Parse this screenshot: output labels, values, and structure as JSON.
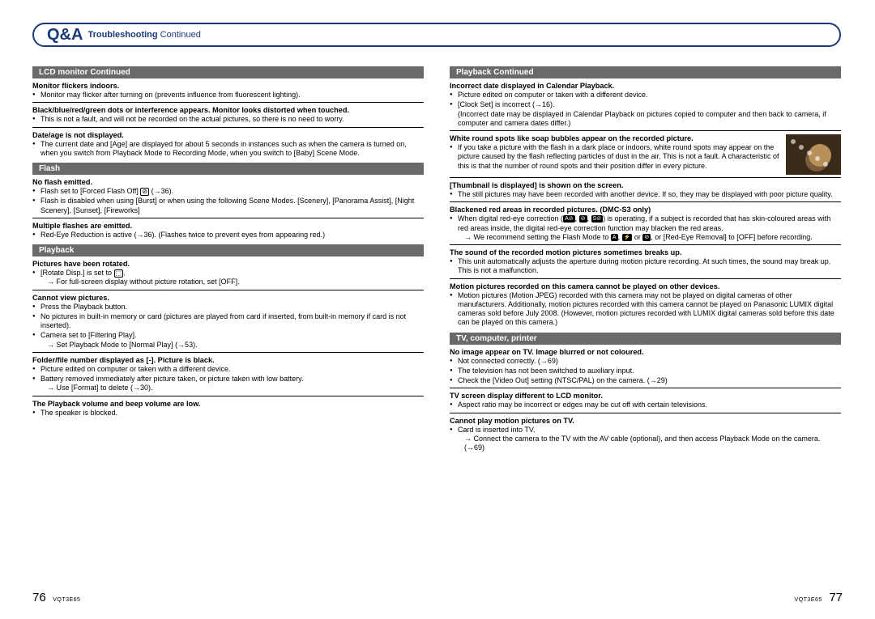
{
  "header": {
    "qa": "Q&A",
    "title_bold": "Troubleshooting",
    "title_rest": " Continued"
  },
  "left": {
    "sections": [
      {
        "bar": "LCD monitor Continued",
        "groups": [
          {
            "title": "Monitor flickers indoors.",
            "bullets": [
              {
                "text": "Monitor may flicker after turning on (prevents influence from fluorescent lighting)."
              }
            ]
          },
          {
            "title": "Black/blue/red/green dots or interference appears. Monitor looks distorted when touched.",
            "bullets": [
              {
                "text": "This is not a fault, and will not be recorded on the actual pictures, so there is no need to worry."
              }
            ]
          },
          {
            "title": "Date/age is not displayed.",
            "bullets": [
              {
                "text": "The current date and [Age] are displayed for about 5 seconds in instances such as when the camera is turned on, when you switch from Playback Mode to Recording Mode, when you switch to [Baby] Scene Mode."
              }
            ]
          }
        ]
      },
      {
        "bar": "Flash",
        "groups": [
          {
            "title": "No flash emitted.",
            "bullets": [
              {
                "text_html": "Flash set to [Forced Flash Off] <span class='icon-box'>⊘</span> (→36)."
              },
              {
                "text": "Flash is disabled when using [Burst] or when using the following Scene Modes. [Scenery], [Panorama Assist], [Night Scenery], [Sunset], [Fireworks]"
              }
            ]
          },
          {
            "title": "Multiple flashes are emitted.",
            "bullets": [
              {
                "text": "Red-Eye Reduction is active (→36). (Flashes twice to prevent eyes from appearing red.)"
              }
            ]
          }
        ]
      },
      {
        "bar": "Playback",
        "groups": [
          {
            "title": "Pictures have been rotated.",
            "bullets": [
              {
                "text_html": "[Rotate Disp.] is set to <span class='icon-box'>⬚</span>.",
                "sub": "→ For full-screen display without picture rotation, set [OFF]."
              }
            ]
          },
          {
            "title": "Cannot view pictures.",
            "bullets": [
              {
                "text": "Press the Playback button."
              },
              {
                "text": "No pictures in built-in memory or card (pictures are played from card if inserted, from built-in memory if card is not inserted)."
              },
              {
                "text": "Camera set to [Filtering Play].",
                "sub": "→ Set Playback Mode to [Normal Play] (→53)."
              }
            ]
          },
          {
            "title": "Folder/file number displayed as [-]. Picture is black.",
            "bullets": [
              {
                "text": "Picture edited on computer or taken with a different device."
              },
              {
                "text": "Battery removed immediately after picture taken, or picture taken with low battery.",
                "sub": "→ Use [Format] to delete (→30)."
              }
            ]
          },
          {
            "title": "The Playback volume and beep volume are low.",
            "bullets": [
              {
                "text": "The speaker is blocked."
              }
            ]
          }
        ]
      }
    ]
  },
  "right": {
    "sections": [
      {
        "bar": "Playback Continued",
        "groups": [
          {
            "title": "Incorrect date displayed in Calendar Playback.",
            "bullets": [
              {
                "text": "Picture edited on computer or taken with a different device."
              },
              {
                "text": "[Clock Set] is incorrect (→16).",
                "sub_plain": "(Incorrect date may be displayed in Calendar Playback on pictures copied to computer and then back to camera, if computer and camera dates differ.)"
              }
            ]
          },
          {
            "thumb": true,
            "title": "White round spots like soap bubbles appear on the recorded picture.",
            "bullets": [
              {
                "text": "If you take a picture with the flash in a dark place or indoors, white round spots may appear on the picture caused by the flash reflecting particles of dust in the air. This is not a fault. A characteristic of this is that the number of round spots and their position differ in every picture."
              }
            ]
          },
          {
            "title": "[Thumbnail is displayed] is shown on the screen.",
            "bullets": [
              {
                "text": "The still pictures may have been recorded with another device. If so, they may be displayed with poor picture quality."
              }
            ]
          },
          {
            "title": "Blackened red areas in recorded pictures. (DMC-S3 only)",
            "bullets": [
              {
                "text_html": "When digital red-eye correction (<span class='icon-dark'>A⊘</span>, <span class='icon-dark'>⊘</span>, <span class='icon-dark'>S⊘</span>) is operating, if a subject is recorded that has skin-coloured areas with red areas inside, the digital red-eye correction function may blacken the red areas.",
                "sub_html": "→ We recommend setting the Flash Mode to <span class='icon-dark'>A</span>, <span class='icon-dark'>⚡</span> or <span class='icon-dark'>⊘</span>, or [Red-Eye Removal] to [OFF] before recording."
              }
            ]
          },
          {
            "title": "The sound of the recorded motion pictures sometimes breaks up.",
            "bullets": [
              {
                "text": "This unit automatically adjusts the aperture during motion picture recording. At such times, the sound may break up. This is not a malfunction."
              }
            ]
          },
          {
            "title": "Motion pictures recorded on this camera cannot be played on other devices.",
            "bullets": [
              {
                "text": "Motion pictures (Motion JPEG) recorded with this camera may not be played on digital cameras of other manufacturers. Additionally, motion pictures recorded with this camera cannot be played on Panasonic LUMIX digital cameras sold before July 2008. (However, motion pictures recorded with LUMIX digital cameras sold before this date can be played on this camera.)"
              }
            ]
          }
        ]
      },
      {
        "bar": "TV, computer, printer",
        "groups": [
          {
            "title": "No image appear on TV. Image blurred or not coloured.",
            "bullets": [
              {
                "text": "Not connected correctly. (→69)"
              },
              {
                "text": "The television has not been switched to auxiliary input."
              },
              {
                "text": "Check the [Video Out] setting (NTSC/PAL) on the camera. (→29)"
              }
            ]
          },
          {
            "title": "TV screen display different to LCD monitor.",
            "bullets": [
              {
                "text": "Aspect ratio may be incorrect or edges may be cut off with certain televisions."
              }
            ]
          },
          {
            "title": "Cannot play motion pictures on TV.",
            "bullets": [
              {
                "text": "Card is inserted into TV.",
                "sub": "→ Connect the camera to the TV with the AV cable (optional), and then access Playback Mode on the camera. (→69)"
              }
            ]
          }
        ]
      }
    ]
  },
  "footer": {
    "page_left": "76",
    "code_left": "VQT3E65",
    "code_right": "VQT3E65",
    "page_right": "77"
  }
}
